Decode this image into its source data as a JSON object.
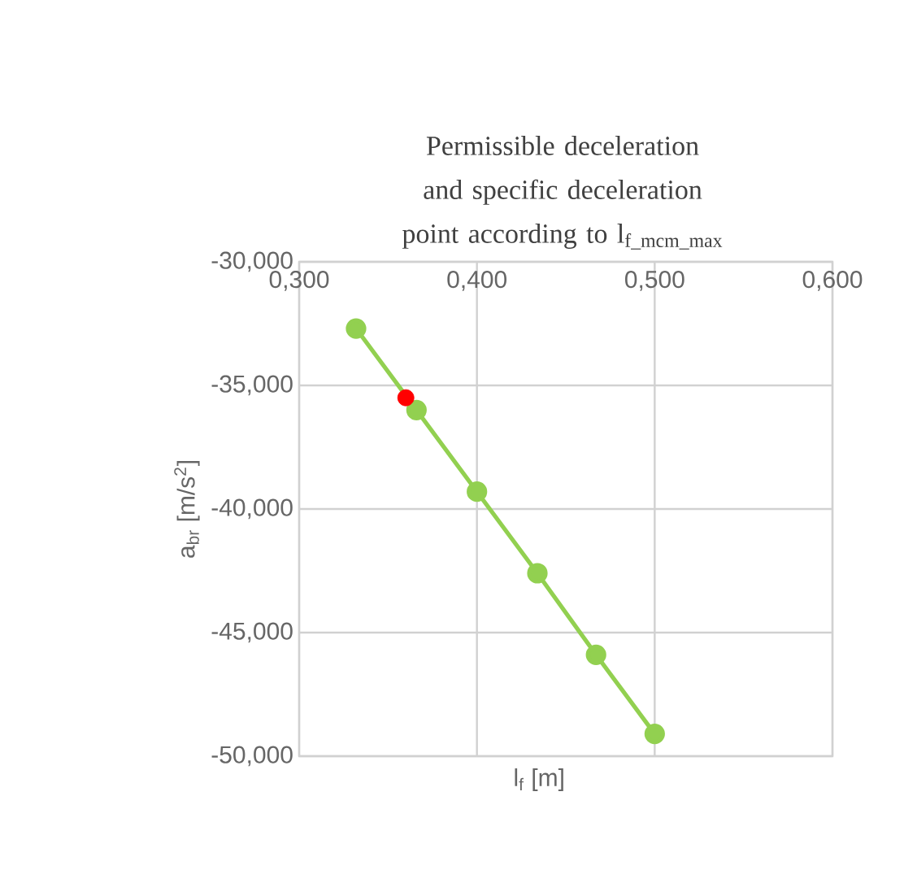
{
  "chart_data": {
    "type": "line",
    "title": "Permissible deceleration and specific deceleration point according to l$_{f_mcm_max}$",
    "xlabel": "l$_{f}$ [m]",
    "ylabel": "a$_{br}$ [m/s$^{2}$]",
    "xlim": [
      0.3,
      0.6
    ],
    "xticks": [
      {
        "value": 0.3,
        "label": "0,300"
      },
      {
        "value": 0.4,
        "label": "0,400"
      },
      {
        "value": 0.5,
        "label": "0,500"
      },
      {
        "value": 0.6,
        "label": "0,600"
      }
    ],
    "ylim": [
      -50,
      -30
    ],
    "yticks": [
      {
        "value": -50,
        "label": "-50,000"
      },
      {
        "value": -45,
        "label": "-45,000"
      },
      {
        "value": -40,
        "label": "-40,000"
      },
      {
        "value": -35,
        "label": "-35,000"
      },
      {
        "value": -30,
        "label": "-30,000"
      }
    ],
    "grid": true,
    "marker": "circle",
    "series": [
      {
        "color": "#92d050",
        "x": [
          0.332,
          0.366,
          0.4,
          0.434,
          0.467,
          0.5
        ],
        "values": [
          -32.7,
          -36.0,
          -39.3,
          -42.6,
          -45.9,
          -49.1
        ]
      },
      {
        "type": "scatter",
        "color": "#ff0000",
        "x": [
          0.36
        ],
        "values": [
          -35.5
        ]
      }
    ]
  }
}
